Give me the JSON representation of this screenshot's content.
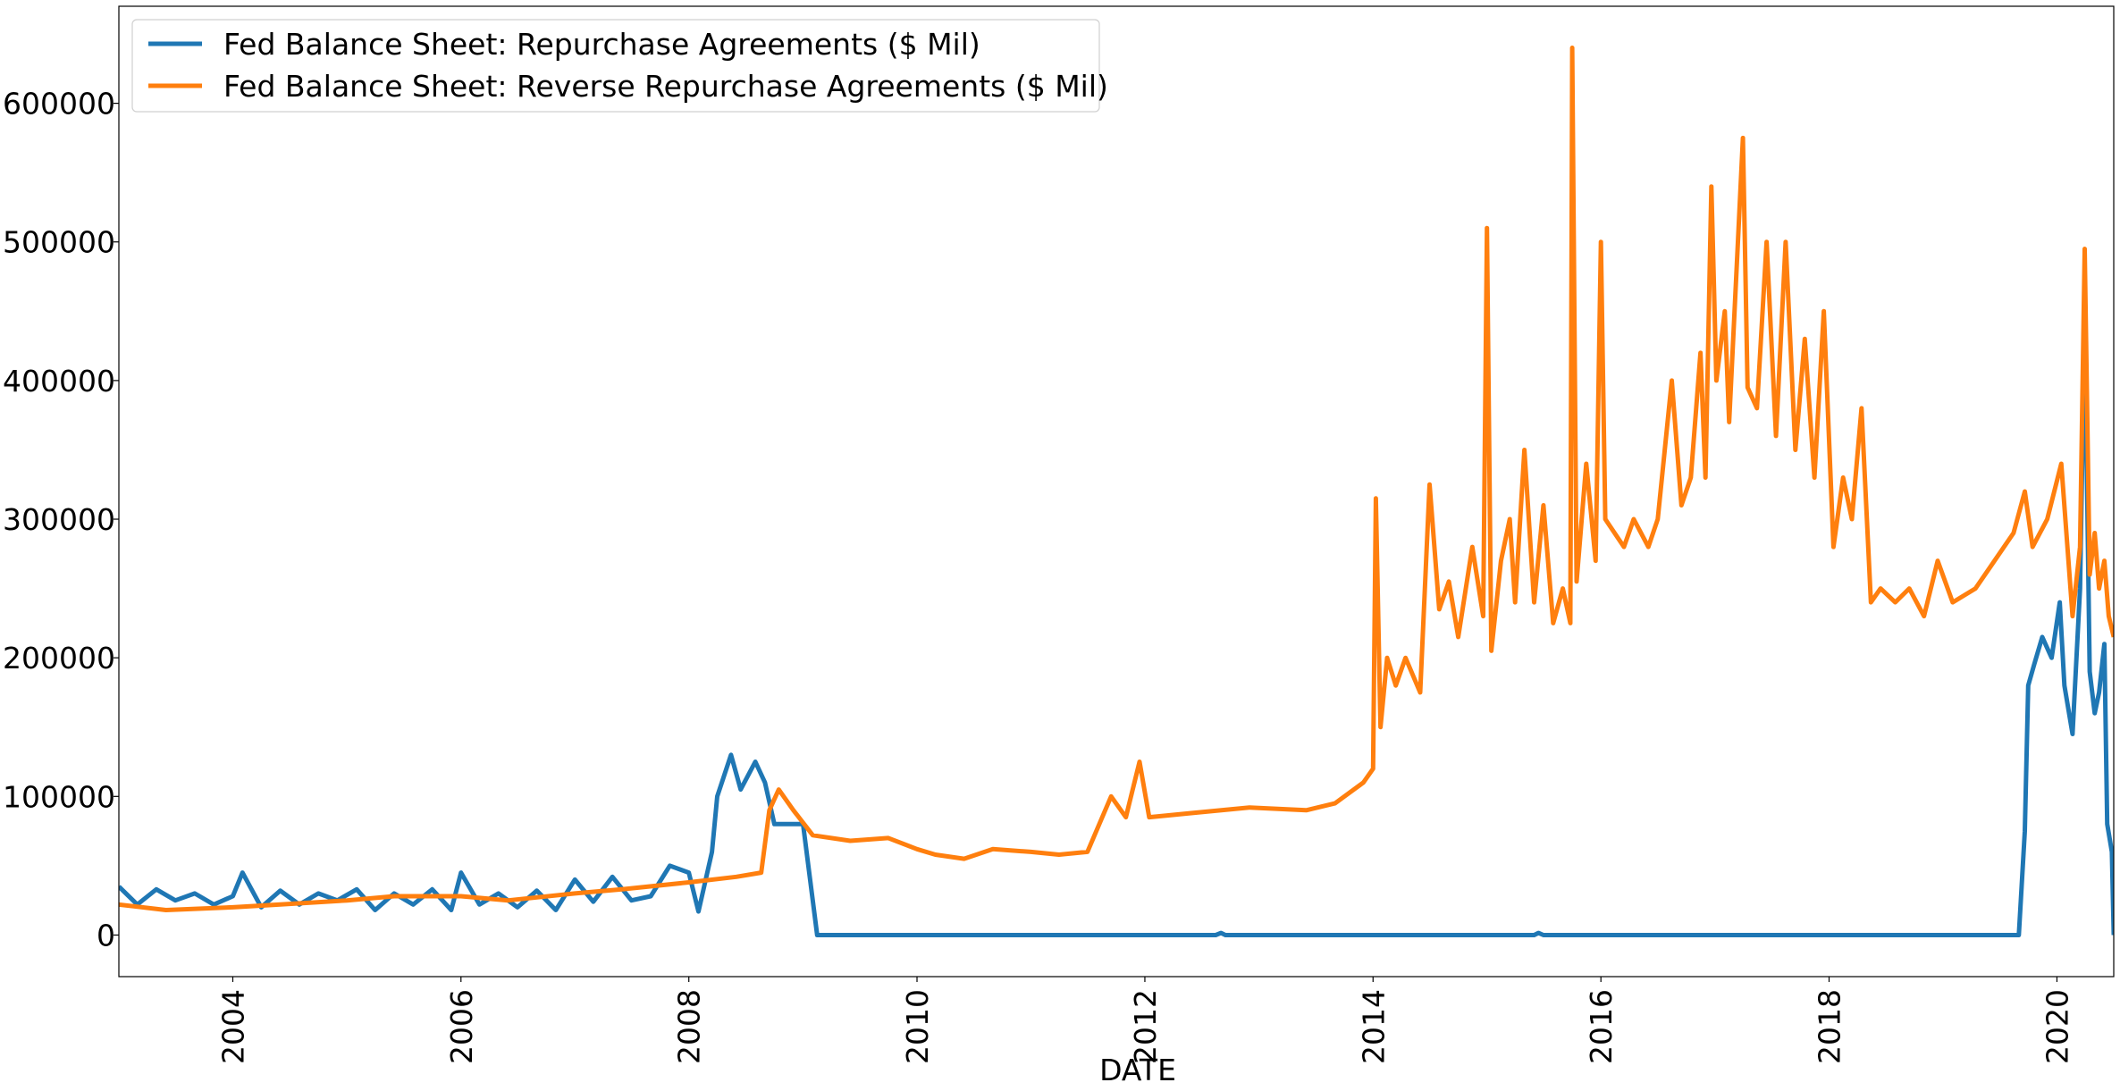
{
  "chart_data": {
    "type": "line",
    "xlabel": "DATE",
    "ylabel": "",
    "xlim": [
      "2003-01-01",
      "2020-07-01"
    ],
    "ylim": [
      -30000,
      670000
    ],
    "x_ticks": [
      "2004",
      "2006",
      "2008",
      "2010",
      "2012",
      "2014",
      "2016",
      "2018",
      "2020"
    ],
    "y_ticks": [
      0,
      100000,
      200000,
      300000,
      400000,
      500000,
      600000
    ],
    "grid": false,
    "legend": "top-left",
    "series": [
      {
        "name": "Fed Balance Sheet: Repurchase Agreements ($ Mil)",
        "color": "#1f77b4",
        "points": [
          [
            "2003-01-01",
            35000
          ],
          [
            "2003-03-01",
            22000
          ],
          [
            "2003-05-01",
            33000
          ],
          [
            "2003-07-01",
            25000
          ],
          [
            "2003-09-01",
            30000
          ],
          [
            "2003-11-01",
            22000
          ],
          [
            "2004-01-01",
            28000
          ],
          [
            "2004-02-01",
            45000
          ],
          [
            "2004-04-01",
            20000
          ],
          [
            "2004-06-01",
            32000
          ],
          [
            "2004-08-01",
            22000
          ],
          [
            "2004-10-01",
            30000
          ],
          [
            "2004-12-01",
            25000
          ],
          [
            "2005-02-01",
            33000
          ],
          [
            "2005-04-01",
            18000
          ],
          [
            "2005-06-01",
            30000
          ],
          [
            "2005-08-01",
            22000
          ],
          [
            "2005-10-01",
            33000
          ],
          [
            "2005-12-01",
            18000
          ],
          [
            "2006-01-01",
            45000
          ],
          [
            "2006-03-01",
            22000
          ],
          [
            "2006-05-01",
            30000
          ],
          [
            "2006-07-01",
            20000
          ],
          [
            "2006-09-01",
            32000
          ],
          [
            "2006-11-01",
            18000
          ],
          [
            "2007-01-01",
            40000
          ],
          [
            "2007-03-01",
            24000
          ],
          [
            "2007-05-01",
            42000
          ],
          [
            "2007-07-01",
            25000
          ],
          [
            "2007-09-01",
            28000
          ],
          [
            "2007-11-01",
            50000
          ],
          [
            "2008-01-01",
            45000
          ],
          [
            "2008-02-01",
            17000
          ],
          [
            "2008-03-15",
            60000
          ],
          [
            "2008-04-01",
            100000
          ],
          [
            "2008-05-15",
            130000
          ],
          [
            "2008-06-15",
            105000
          ],
          [
            "2008-08-01",
            125000
          ],
          [
            "2008-09-01",
            110000
          ],
          [
            "2008-10-01",
            80000
          ],
          [
            "2009-01-01",
            80000
          ],
          [
            "2009-02-15",
            0
          ],
          [
            "2012-08-15",
            0
          ],
          [
            "2012-09-01",
            1500
          ],
          [
            "2012-09-15",
            0
          ],
          [
            "2015-06-01",
            0
          ],
          [
            "2015-06-15",
            1500
          ],
          [
            "2015-07-01",
            0
          ],
          [
            "2019-09-01",
            0
          ],
          [
            "2019-09-20",
            75000
          ],
          [
            "2019-10-01",
            180000
          ],
          [
            "2019-10-20",
            195000
          ],
          [
            "2019-11-15",
            215000
          ],
          [
            "2019-12-15",
            200000
          ],
          [
            "2020-01-10",
            240000
          ],
          [
            "2020-01-25",
            180000
          ],
          [
            "2020-02-20",
            145000
          ],
          [
            "2020-03-15",
            250000
          ],
          [
            "2020-03-30",
            445000
          ],
          [
            "2020-04-15",
            190000
          ],
          [
            "2020-05-01",
            160000
          ],
          [
            "2020-05-15",
            175000
          ],
          [
            "2020-06-01",
            210000
          ],
          [
            "2020-06-10",
            80000
          ],
          [
            "2020-06-25",
            60000
          ],
          [
            "2020-07-01",
            0
          ]
        ]
      },
      {
        "name": "Fed Balance Sheet: Reverse Repurchase Agreements ($ Mil)",
        "color": "#ff7f0e",
        "points": [
          [
            "2003-01-01",
            22000
          ],
          [
            "2003-06-01",
            18000
          ],
          [
            "2004-01-01",
            20000
          ],
          [
            "2004-06-01",
            22000
          ],
          [
            "2005-01-01",
            25000
          ],
          [
            "2005-06-01",
            28000
          ],
          [
            "2006-01-01",
            28000
          ],
          [
            "2006-06-01",
            25000
          ],
          [
            "2007-01-01",
            30000
          ],
          [
            "2007-06-01",
            33000
          ],
          [
            "2008-01-01",
            38000
          ],
          [
            "2008-06-01",
            42000
          ],
          [
            "2008-08-20",
            45000
          ],
          [
            "2008-09-15",
            90000
          ],
          [
            "2008-10-15",
            105000
          ],
          [
            "2008-12-01",
            90000
          ],
          [
            "2009-02-01",
            72000
          ],
          [
            "2009-06-01",
            68000
          ],
          [
            "2009-10-01",
            70000
          ],
          [
            "2010-01-01",
            62000
          ],
          [
            "2010-03-01",
            58000
          ],
          [
            "2010-06-01",
            55000
          ],
          [
            "2010-09-01",
            62000
          ],
          [
            "2011-01-01",
            60000
          ],
          [
            "2011-04-01",
            58000
          ],
          [
            "2011-07-01",
            60000
          ],
          [
            "2011-09-15",
            100000
          ],
          [
            "2011-11-01",
            85000
          ],
          [
            "2011-12-15",
            125000
          ],
          [
            "2012-01-15",
            85000
          ],
          [
            "2012-06-01",
            88000
          ],
          [
            "2012-12-01",
            92000
          ],
          [
            "2013-06-01",
            90000
          ],
          [
            "2013-09-01",
            95000
          ],
          [
            "2013-12-01",
            110000
          ],
          [
            "2014-01-01",
            120000
          ],
          [
            "2014-01-10",
            315000
          ],
          [
            "2014-01-25",
            150000
          ],
          [
            "2014-02-15",
            200000
          ],
          [
            "2014-03-15",
            180000
          ],
          [
            "2014-04-15",
            200000
          ],
          [
            "2014-06-01",
            175000
          ],
          [
            "2014-07-01",
            325000
          ],
          [
            "2014-08-01",
            235000
          ],
          [
            "2014-09-01",
            255000
          ],
          [
            "2014-10-01",
            215000
          ],
          [
            "2014-11-15",
            280000
          ],
          [
            "2014-12-20",
            230000
          ],
          [
            "2015-01-01",
            510000
          ],
          [
            "2015-01-15",
            205000
          ],
          [
            "2015-02-15",
            270000
          ],
          [
            "2015-03-15",
            300000
          ],
          [
            "2015-04-01",
            240000
          ],
          [
            "2015-05-01",
            350000
          ],
          [
            "2015-06-01",
            240000
          ],
          [
            "2015-07-01",
            310000
          ],
          [
            "2015-08-01",
            225000
          ],
          [
            "2015-09-01",
            250000
          ],
          [
            "2015-09-25",
            225000
          ],
          [
            "2015-10-01",
            640000
          ],
          [
            "2015-10-15",
            255000
          ],
          [
            "2015-11-15",
            340000
          ],
          [
            "2015-12-15",
            270000
          ],
          [
            "2016-01-01",
            500000
          ],
          [
            "2016-01-15",
            300000
          ],
          [
            "2016-03-15",
            280000
          ],
          [
            "2016-04-15",
            300000
          ],
          [
            "2016-06-01",
            280000
          ],
          [
            "2016-07-01",
            300000
          ],
          [
            "2016-08-15",
            400000
          ],
          [
            "2016-09-15",
            310000
          ],
          [
            "2016-10-15",
            330000
          ],
          [
            "2016-11-15",
            420000
          ],
          [
            "2016-12-01",
            330000
          ],
          [
            "2016-12-20",
            540000
          ],
          [
            "2017-01-05",
            400000
          ],
          [
            "2017-02-01",
            450000
          ],
          [
            "2017-02-15",
            370000
          ],
          [
            "2017-03-15",
            500000
          ],
          [
            "2017-03-31",
            575000
          ],
          [
            "2017-04-15",
            395000
          ],
          [
            "2017-05-15",
            380000
          ],
          [
            "2017-06-15",
            500000
          ],
          [
            "2017-07-15",
            360000
          ],
          [
            "2017-08-15",
            500000
          ],
          [
            "2017-09-15",
            350000
          ],
          [
            "2017-10-15",
            430000
          ],
          [
            "2017-11-15",
            330000
          ],
          [
            "2017-12-15",
            450000
          ],
          [
            "2018-01-15",
            280000
          ],
          [
            "2018-02-15",
            330000
          ],
          [
            "2018-03-15",
            300000
          ],
          [
            "2018-04-15",
            380000
          ],
          [
            "2018-05-15",
            240000
          ],
          [
            "2018-06-15",
            250000
          ],
          [
            "2018-08-01",
            240000
          ],
          [
            "2018-09-15",
            250000
          ],
          [
            "2018-11-01",
            230000
          ],
          [
            "2018-12-15",
            270000
          ],
          [
            "2019-02-01",
            240000
          ],
          [
            "2019-04-15",
            250000
          ],
          [
            "2019-06-15",
            270000
          ],
          [
            "2019-08-15",
            290000
          ],
          [
            "2019-09-20",
            320000
          ],
          [
            "2019-10-15",
            280000
          ],
          [
            "2019-12-01",
            300000
          ],
          [
            "2020-01-15",
            340000
          ],
          [
            "2020-02-20",
            230000
          ],
          [
            "2020-03-15",
            280000
          ],
          [
            "2020-03-30",
            495000
          ],
          [
            "2020-04-15",
            260000
          ],
          [
            "2020-05-01",
            290000
          ],
          [
            "2020-05-15",
            250000
          ],
          [
            "2020-06-01",
            270000
          ],
          [
            "2020-06-15",
            230000
          ],
          [
            "2020-07-01",
            215000
          ]
        ]
      }
    ]
  }
}
